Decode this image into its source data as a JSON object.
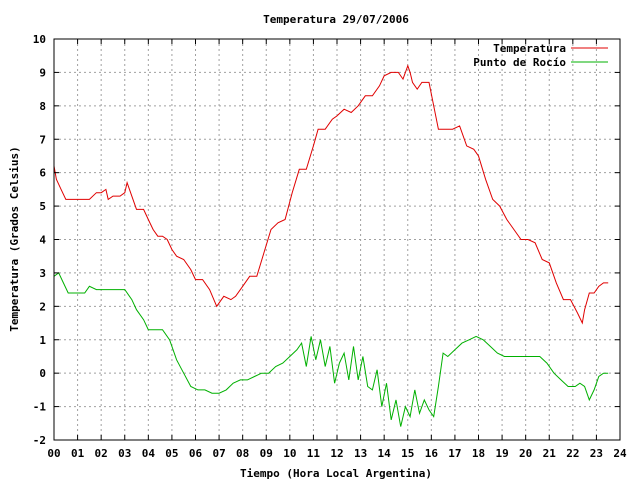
{
  "chart_data": {
    "type": "line",
    "title": "Temperatura 29/07/2006",
    "xlabel": "Tiempo (Hora Local Argentina)",
    "ylabel": "Temperatura (Grados Celsius)",
    "xlim": [
      0,
      24
    ],
    "ylim": [
      -2,
      10
    ],
    "xticks": [
      "00",
      "01",
      "02",
      "03",
      "04",
      "05",
      "06",
      "07",
      "08",
      "09",
      "10",
      "11",
      "12",
      "13",
      "14",
      "15",
      "16",
      "17",
      "18",
      "19",
      "20",
      "21",
      "22",
      "23",
      "24"
    ],
    "yticks": [
      "-2",
      "-1",
      "0",
      "1",
      "2",
      "3",
      "4",
      "5",
      "6",
      "7",
      "8",
      "9",
      "10"
    ],
    "grid": true,
    "legend_position": "top-right",
    "series": [
      {
        "name": "Temperatura",
        "color": "#e00000",
        "x": [
          0,
          0.1,
          0.3,
          0.5,
          0.8,
          1.0,
          1.5,
          1.8,
          2.0,
          2.2,
          2.3,
          2.5,
          2.8,
          3.0,
          3.1,
          3.3,
          3.5,
          3.8,
          4.0,
          4.2,
          4.4,
          4.6,
          4.8,
          5.0,
          5.2,
          5.5,
          5.8,
          6.0,
          6.3,
          6.6,
          6.9,
          7.2,
          7.5,
          7.7,
          8.0,
          8.3,
          8.6,
          8.9,
          9.2,
          9.5,
          9.8,
          10.1,
          10.4,
          10.7,
          11.0,
          11.2,
          11.5,
          11.8,
          12.0,
          12.3,
          12.6,
          12.9,
          13.2,
          13.5,
          13.8,
          14.0,
          14.3,
          14.6,
          14.8,
          15.0,
          15.1,
          15.2,
          15.4,
          15.6,
          15.9,
          16.1,
          16.3,
          16.6,
          16.9,
          17.2,
          17.5,
          17.8,
          18.0,
          18.3,
          18.6,
          18.9,
          19.2,
          19.5,
          19.8,
          20.1,
          20.4,
          20.7,
          21.0,
          21.3,
          21.6,
          21.9,
          22.2,
          22.4,
          22.5,
          22.7,
          22.9,
          23.1,
          23.3,
          23.5
        ],
        "values": [
          6.2,
          5.8,
          5.5,
          5.2,
          5.2,
          5.2,
          5.2,
          5.4,
          5.4,
          5.5,
          5.2,
          5.3,
          5.3,
          5.4,
          5.7,
          5.3,
          4.9,
          4.9,
          4.6,
          4.3,
          4.1,
          4.1,
          4.0,
          3.7,
          3.5,
          3.4,
          3.1,
          2.8,
          2.8,
          2.5,
          2.0,
          2.3,
          2.2,
          2.3,
          2.6,
          2.9,
          2.9,
          3.6,
          4.3,
          4.5,
          4.6,
          5.4,
          6.1,
          6.1,
          6.8,
          7.3,
          7.3,
          7.6,
          7.7,
          7.9,
          7.8,
          8.0,
          8.3,
          8.3,
          8.6,
          8.9,
          9.0,
          9.0,
          8.8,
          9.2,
          9.0,
          8.7,
          8.5,
          8.7,
          8.7,
          8.0,
          7.3,
          7.3,
          7.3,
          7.4,
          6.8,
          6.7,
          6.5,
          5.8,
          5.2,
          5.0,
          4.6,
          4.3,
          4.0,
          4.0,
          3.9,
          3.4,
          3.3,
          2.7,
          2.2,
          2.2,
          1.8,
          1.5,
          1.9,
          2.4,
          2.4,
          2.6,
          2.7,
          2.7
        ]
      },
      {
        "name": "Punto de Rocío",
        "color": "#00b000",
        "x": [
          0,
          0.2,
          0.4,
          0.6,
          0.8,
          1.0,
          1.3,
          1.5,
          1.8,
          2.0,
          2.3,
          2.5,
          2.8,
          3.0,
          3.3,
          3.5,
          3.8,
          4.0,
          4.3,
          4.6,
          4.9,
          5.2,
          5.5,
          5.8,
          6.1,
          6.4,
          6.7,
          7.0,
          7.3,
          7.6,
          7.9,
          8.2,
          8.5,
          8.8,
          9.1,
          9.4,
          9.7,
          10.0,
          10.3,
          10.5,
          10.7,
          10.9,
          11.1,
          11.3,
          11.5,
          11.7,
          11.9,
          12.1,
          12.3,
          12.5,
          12.7,
          12.9,
          13.1,
          13.3,
          13.5,
          13.7,
          13.9,
          14.1,
          14.3,
          14.5,
          14.7,
          14.9,
          15.1,
          15.3,
          15.5,
          15.7,
          15.9,
          16.1,
          16.3,
          16.5,
          16.7,
          17.0,
          17.3,
          17.6,
          17.9,
          18.2,
          18.5,
          18.8,
          19.1,
          19.4,
          19.7,
          20.0,
          20.3,
          20.6,
          20.9,
          21.2,
          21.5,
          21.8,
          22.1,
          22.3,
          22.5,
          22.7,
          22.9,
          23.1,
          23.3,
          23.5
        ],
        "values": [
          2.9,
          3.0,
          2.7,
          2.4,
          2.4,
          2.4,
          2.4,
          2.6,
          2.5,
          2.5,
          2.5,
          2.5,
          2.5,
          2.5,
          2.2,
          1.9,
          1.6,
          1.3,
          1.3,
          1.3,
          1.0,
          0.4,
          0.0,
          -0.4,
          -0.5,
          -0.5,
          -0.6,
          -0.6,
          -0.5,
          -0.3,
          -0.2,
          -0.2,
          -0.1,
          0.0,
          0.0,
          0.2,
          0.3,
          0.5,
          0.7,
          0.9,
          0.2,
          1.1,
          0.4,
          1.0,
          0.2,
          0.8,
          -0.3,
          0.3,
          0.6,
          -0.2,
          0.8,
          -0.2,
          0.5,
          -0.4,
          -0.5,
          0.1,
          -1.0,
          -0.3,
          -1.4,
          -0.8,
          -1.6,
          -1.0,
          -1.3,
          -0.5,
          -1.2,
          -0.8,
          -1.1,
          -1.3,
          -0.4,
          0.6,
          0.5,
          0.7,
          0.9,
          1.0,
          1.1,
          1.0,
          0.8,
          0.6,
          0.5,
          0.5,
          0.5,
          0.5,
          0.5,
          0.5,
          0.3,
          0.0,
          -0.2,
          -0.4,
          -0.4,
          -0.3,
          -0.4,
          -0.8,
          -0.5,
          -0.1,
          0.0,
          0.0
        ]
      }
    ]
  }
}
